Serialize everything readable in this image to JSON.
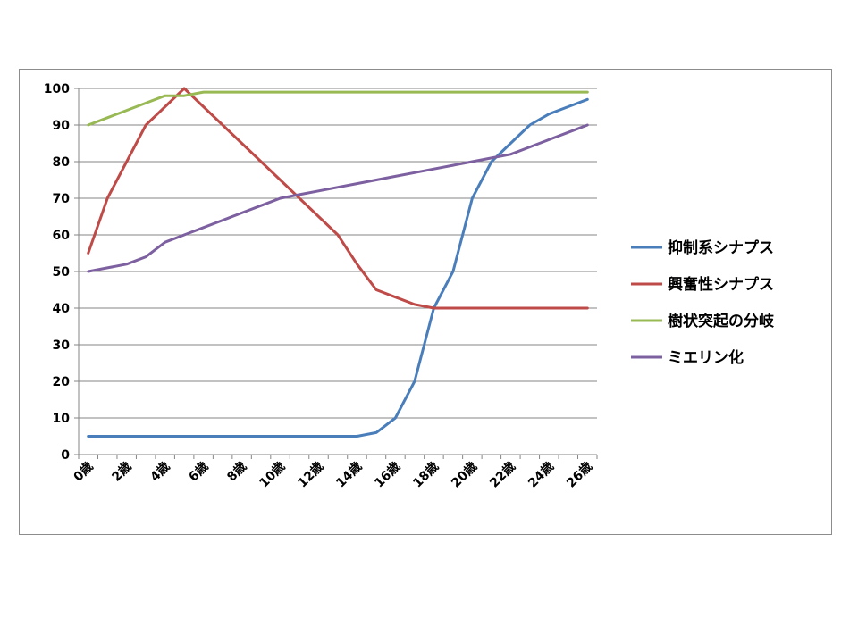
{
  "chart_data": {
    "type": "line",
    "title": "",
    "xlabel": "",
    "ylabel": "",
    "ylim": [
      0,
      100
    ],
    "y_ticks": [
      "0",
      "10",
      "20",
      "30",
      "40",
      "50",
      "60",
      "70",
      "80",
      "90",
      "100"
    ],
    "categories": [
      "0歳",
      "1歳",
      "2歳",
      "3歳",
      "4歳",
      "5歳",
      "6歳",
      "7歳",
      "8歳",
      "9歳",
      "10歳",
      "11歳",
      "12歳",
      "13歳",
      "14歳",
      "15歳",
      "16歳",
      "17歳",
      "18歳",
      "19歳",
      "20歳",
      "21歳",
      "22歳",
      "23歳",
      "24歳",
      "25歳",
      "26歳"
    ],
    "x_tick_labels": [
      "0歳",
      "",
      "2歳",
      "",
      "4歳",
      "",
      "6歳",
      "",
      "8歳",
      "",
      "10歳",
      "",
      "12歳",
      "",
      "14歳",
      "",
      "16歳",
      "",
      "18歳",
      "",
      "20歳",
      "",
      "22歳",
      "",
      "24歳",
      "",
      "26歳"
    ],
    "grid": true,
    "legend_position": "right",
    "series": [
      {
        "name": "抑制系シナプス",
        "color": "#4a7ebb",
        "values": [
          5,
          5,
          5,
          5,
          5,
          5,
          5,
          5,
          5,
          5,
          5,
          5,
          5,
          5,
          5,
          6,
          10,
          20,
          40,
          50,
          70,
          80,
          85,
          90,
          93,
          95,
          97
        ]
      },
      {
        "name": "興奮性シナプス",
        "color": "#be4b48",
        "values": [
          55,
          70,
          80,
          90,
          95,
          100,
          95,
          90,
          85,
          80,
          75,
          70,
          65,
          60,
          52,
          45,
          43,
          41,
          40,
          40,
          40,
          40,
          40,
          40,
          40,
          40,
          40
        ]
      },
      {
        "name": "樹状突起の分岐",
        "color": "#98b954",
        "values": [
          90,
          92,
          94,
          96,
          98,
          98,
          99,
          99,
          99,
          99,
          99,
          99,
          99,
          99,
          99,
          99,
          99,
          99,
          99,
          99,
          99,
          99,
          99,
          99,
          99,
          99,
          99
        ]
      },
      {
        "name": "ミエリン化",
        "color": "#7d60a0",
        "values": [
          50,
          51,
          52,
          54,
          58,
          60,
          62,
          64,
          66,
          68,
          70,
          71,
          72,
          73,
          74,
          75,
          76,
          77,
          78,
          79,
          80,
          81,
          82,
          84,
          86,
          88,
          90
        ]
      }
    ]
  }
}
